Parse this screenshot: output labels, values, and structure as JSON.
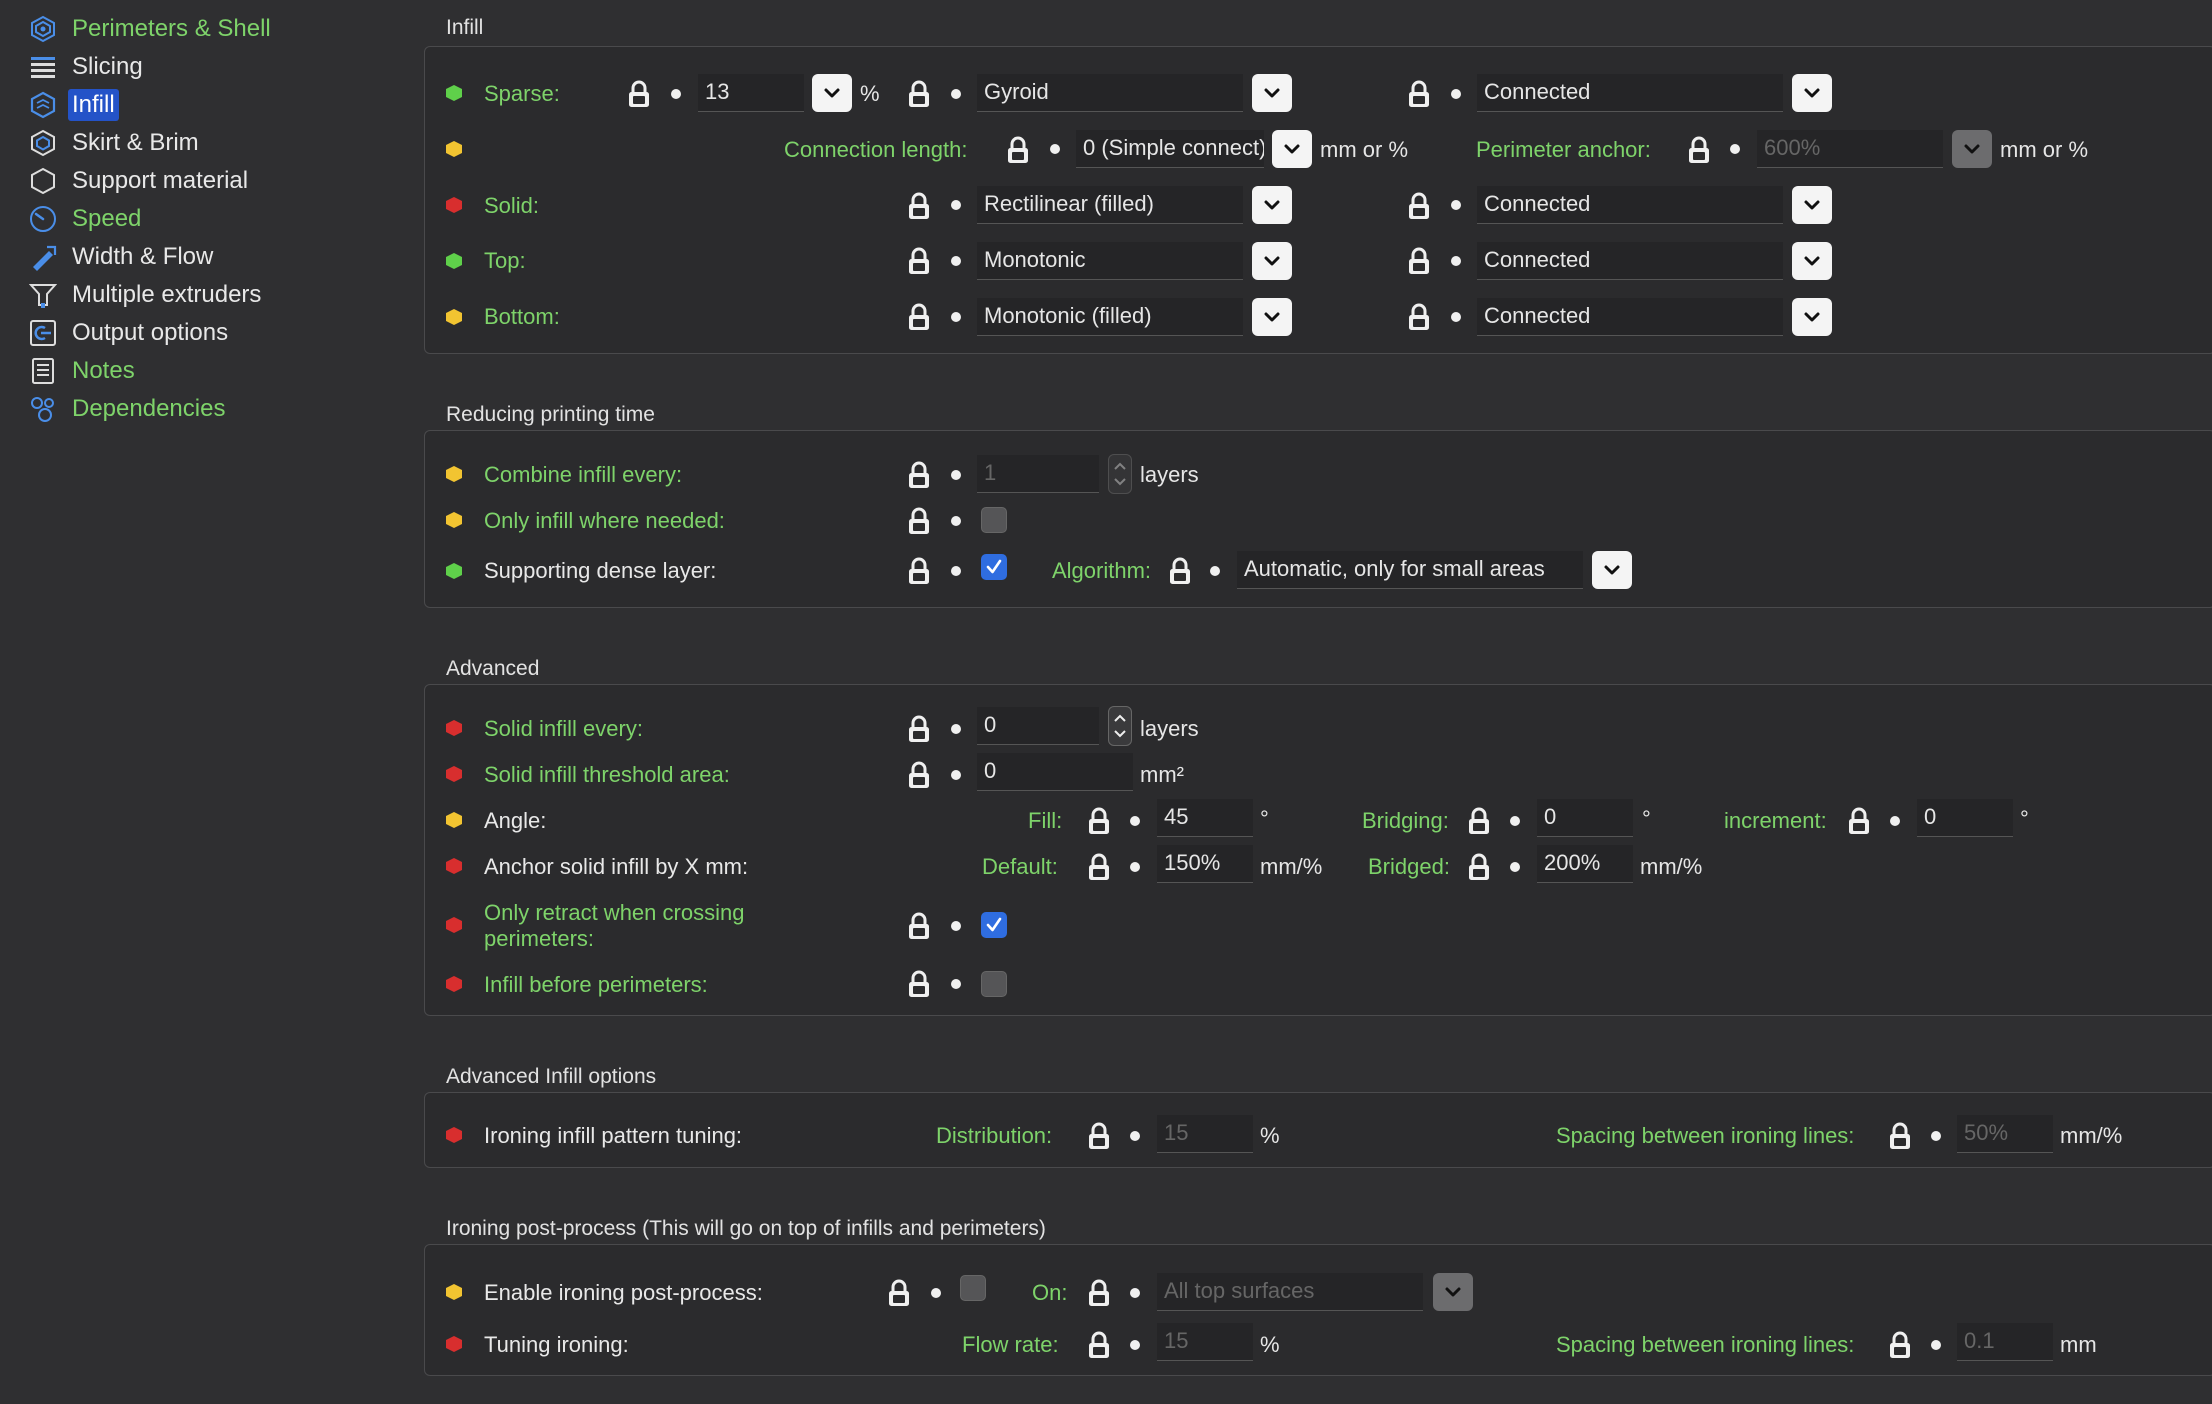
{
  "sidebar": {
    "items": [
      {
        "label": "Perimeters & Shell",
        "icon": "perimeters-icon",
        "color": "green"
      },
      {
        "label": "Slicing",
        "icon": "slicing-icon",
        "color": "white"
      },
      {
        "label": "Infill",
        "icon": "infill-icon",
        "color": "white",
        "selected": true
      },
      {
        "label": "Skirt & Brim",
        "icon": "skirt-brim-icon",
        "color": "white"
      },
      {
        "label": "Support material",
        "icon": "support-icon",
        "color": "white"
      },
      {
        "label": "Speed",
        "icon": "speed-icon",
        "color": "green"
      },
      {
        "label": "Width & Flow",
        "icon": "width-flow-icon",
        "color": "white"
      },
      {
        "label": "Multiple extruders",
        "icon": "extruders-icon",
        "color": "white"
      },
      {
        "label": "Output options",
        "icon": "output-icon",
        "color": "white"
      },
      {
        "label": "Notes",
        "icon": "notes-icon",
        "color": "green"
      },
      {
        "label": "Dependencies",
        "icon": "dependencies-icon",
        "color": "green"
      }
    ]
  },
  "colors": {
    "green": "#7ed36a",
    "yellow": "#f2c431",
    "red": "#d82e2e",
    "accent": "#2f6de0",
    "background": "#2f2f31"
  },
  "infill": {
    "title": "Infill",
    "sparse": {
      "label": "Sparse:",
      "density": "13",
      "unit": "%",
      "pattern": "Gyroid",
      "connection": "Connected"
    },
    "connection_length": {
      "label": "Connection length:",
      "value": "0 (Simple connect)",
      "unit": "mm or %"
    },
    "perimeter_anchor": {
      "label": "Perimeter anchor:",
      "value": "600%",
      "unit": "mm or %"
    },
    "solid": {
      "label": "Solid:",
      "pattern": "Rectilinear (filled)",
      "connection": "Connected"
    },
    "top": {
      "label": "Top:",
      "pattern": "Monotonic",
      "connection": "Connected"
    },
    "bottom": {
      "label": "Bottom:",
      "pattern": "Monotonic (filled)",
      "connection": "Connected"
    }
  },
  "reducing": {
    "title": "Reducing printing time",
    "combine": {
      "label": "Combine infill every:",
      "value": "1",
      "unit": "layers"
    },
    "only_needed": {
      "label": "Only infill where needed:",
      "checked": false
    },
    "dense": {
      "label": "Supporting dense layer:",
      "checked": true,
      "algorithm_label": "Algorithm:",
      "algorithm": "Automatic, only for small areas"
    }
  },
  "advanced": {
    "title": "Advanced",
    "solid_every": {
      "label": "Solid infill every:",
      "value": "0",
      "unit": "layers"
    },
    "threshold": {
      "label": "Solid infill threshold area:",
      "value": "0",
      "unit": "mm²"
    },
    "angle": {
      "label": "Angle:",
      "fill_label": "Fill:",
      "fill": "45",
      "deg": "°",
      "bridging_label": "Bridging:",
      "bridging": "0",
      "increment_label": "increment:",
      "increment": "0"
    },
    "anchor": {
      "label": "Anchor solid infill by X mm:",
      "default_label": "Default:",
      "default": "150%",
      "unit": "mm/%",
      "bridged_label": "Bridged:",
      "bridged": "200%"
    },
    "retract": {
      "label_line1": "Only retract when crossing",
      "label_line2": "perimeters:",
      "checked": true
    },
    "before": {
      "label": "Infill before perimeters:",
      "checked": false
    }
  },
  "adv_options": {
    "title": "Advanced Infill options",
    "ironing_tuning": {
      "label": "Ironing infill pattern tuning:",
      "distribution_label": "Distribution:",
      "distribution": "15",
      "dist_unit": "%",
      "spacing_label": "Spacing between ironing lines:",
      "spacing": "50%",
      "spacing_unit": "mm/%"
    }
  },
  "ironing": {
    "title": "Ironing post-process (This will go on top of infills and perimeters)",
    "enable": {
      "label": "Enable ironing post-process:",
      "checked": false,
      "on_label": "On:",
      "on_value": "All top surfaces"
    },
    "tuning": {
      "label": "Tuning ironing:",
      "flow_label": "Flow rate:",
      "flow": "15",
      "flow_unit": "%",
      "spacing_label": "Spacing between ironing lines:",
      "spacing": "0.1",
      "spacing_unit": "mm"
    }
  }
}
